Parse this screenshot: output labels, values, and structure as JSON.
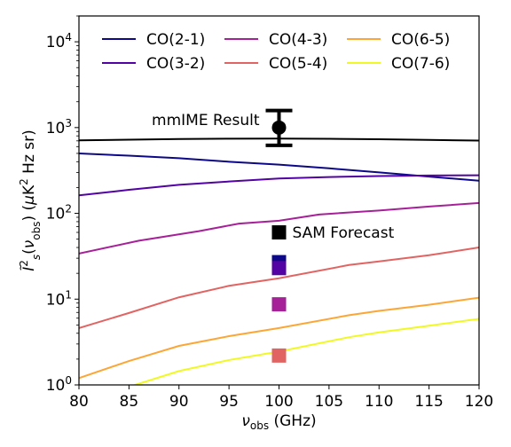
{
  "chart_data": {
    "type": "line",
    "xlabel": "ν_obs (GHz)",
    "xlim": [
      80,
      120
    ],
    "ylim": [
      1,
      20000
    ],
    "yscale": "log",
    "x_ticks": [
      80,
      85,
      90,
      95,
      100,
      105,
      110,
      115,
      120
    ],
    "y_ticks": [
      {
        "value": 1,
        "base": "10",
        "exp": "0"
      },
      {
        "value": 10,
        "base": "10",
        "exp": "1"
      },
      {
        "value": 100,
        "base": "10",
        "exp": "2"
      },
      {
        "value": 1000,
        "base": "10",
        "exp": "3"
      },
      {
        "value": 10000,
        "base": "10",
        "exp": "4"
      }
    ],
    "legend_position": "top",
    "series": [
      {
        "name": "CO(2-1)",
        "color": "#0d0887",
        "x": [
          80,
          85,
          90,
          95,
          100,
          105,
          110,
          115,
          120
        ],
        "y": [
          500,
          470,
          440,
          400,
          370,
          335,
          300,
          268,
          240
        ]
      },
      {
        "name": "CO(3-2)",
        "color": "#5302a3",
        "x": [
          80,
          85,
          90,
          95,
          100,
          105,
          110,
          115,
          120
        ],
        "y": [
          162,
          188,
          215,
          235,
          255,
          265,
          272,
          276,
          278
        ]
      },
      {
        "name": "CO(4-3)",
        "color": "#a62098",
        "x": [
          80,
          86,
          92,
          96,
          100,
          104,
          110,
          115,
          120
        ],
        "y": [
          34,
          48,
          62,
          76,
          82,
          97,
          108,
          120,
          132
        ]
      },
      {
        "name": "CO(5-4)",
        "color": "#e16462",
        "x": [
          80,
          85,
          90,
          95,
          100,
          107,
          110,
          115,
          120
        ],
        "y": [
          4.6,
          6.9,
          10.5,
          14.3,
          17.5,
          25,
          27.5,
          32.5,
          40
        ]
      },
      {
        "name": "CO(6-5)",
        "color": "#fca636",
        "x": [
          80,
          85,
          90,
          95,
          100,
          107,
          110,
          115,
          120
        ],
        "y": [
          1.2,
          1.9,
          2.85,
          3.7,
          4.6,
          6.5,
          7.3,
          8.6,
          10.4
        ]
      },
      {
        "name": "CO(7-6)",
        "color": "#f0f921",
        "x": [
          85,
          90,
          95,
          100,
          107,
          110,
          115,
          120
        ],
        "y": [
          0.95,
          1.45,
          1.95,
          2.45,
          3.6,
          4.1,
          4.9,
          5.9
        ]
      }
    ],
    "total_line": {
      "color": "#000000",
      "x": [
        80,
        85,
        90,
        95,
        100,
        105,
        110,
        115,
        120
      ],
      "y": [
        710,
        722,
        735,
        742,
        745,
        740,
        730,
        718,
        705
      ]
    },
    "mmime_result": {
      "label": "mmIME Result",
      "x": 100,
      "y": 1000,
      "yerr_low": 620,
      "yerr_high": 1580
    },
    "sam_forecast": {
      "label": "SAM Forecast",
      "x": 100,
      "points": [
        {
          "y": 60,
          "color": "#000000"
        },
        {
          "y": 27,
          "color": "#0d0887"
        },
        {
          "y": 23,
          "color": "#5302a3"
        },
        {
          "y": 8.7,
          "color": "#a62098"
        },
        {
          "y": 2.2,
          "color": "#e16462"
        }
      ]
    }
  }
}
